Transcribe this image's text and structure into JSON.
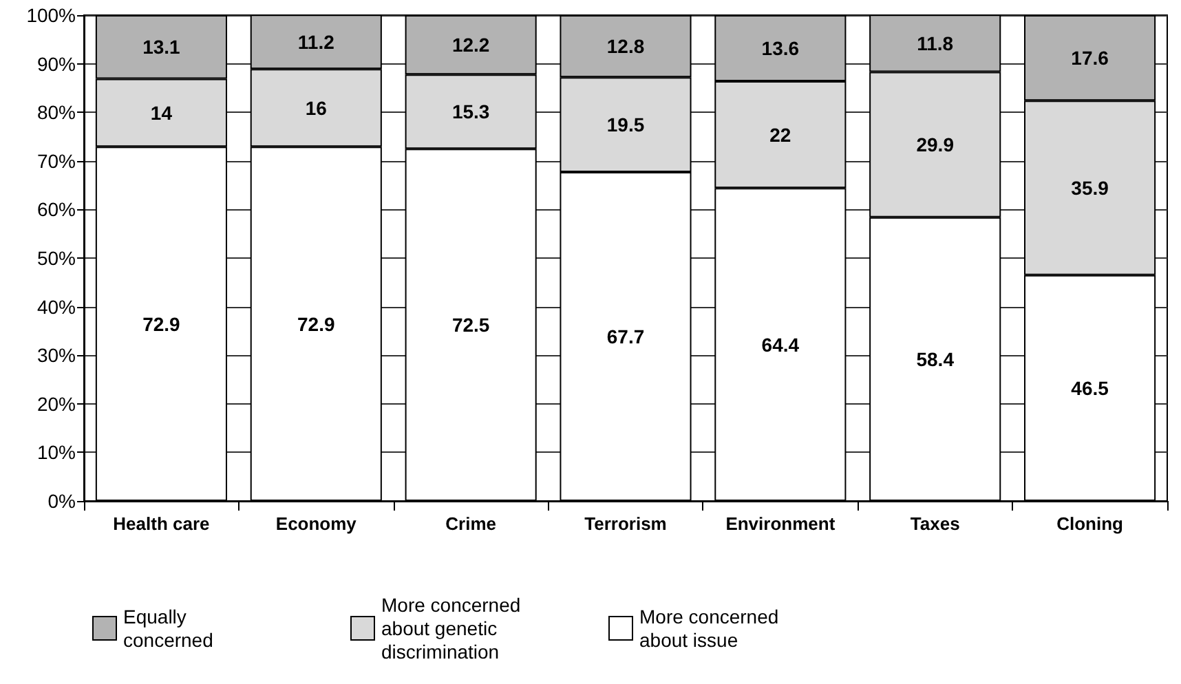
{
  "chart_data": {
    "type": "bar",
    "stacked": true,
    "categories": [
      "Health care",
      "Economy",
      "Crime",
      "Terrorism",
      "Environment",
      "Taxes",
      "Cloning"
    ],
    "series": [
      {
        "name": "More concerned about issue",
        "color": "#ffffff",
        "values": [
          72.9,
          72.9,
          72.5,
          67.7,
          64.4,
          58.4,
          46.5
        ]
      },
      {
        "name": "More concerned about genetic discrimination",
        "color": "#d9d9d9",
        "values": [
          14,
          16,
          15.3,
          19.5,
          22,
          29.9,
          35.9
        ]
      },
      {
        "name": "Equally concerned",
        "color": "#b3b3b3",
        "values": [
          13.1,
          11.2,
          12.2,
          12.8,
          13.6,
          11.8,
          17.6
        ]
      }
    ],
    "ylim": [
      0,
      100
    ],
    "yticks": [
      {
        "value": 0,
        "label": "0%"
      },
      {
        "value": 10,
        "label": "10%"
      },
      {
        "value": 20,
        "label": "20%"
      },
      {
        "value": 30,
        "label": "30%"
      },
      {
        "value": 40,
        "label": "40%"
      },
      {
        "value": 50,
        "label": "50%"
      },
      {
        "value": 60,
        "label": "60%"
      },
      {
        "value": 70,
        "label": "70%"
      },
      {
        "value": 80,
        "label": "80%"
      },
      {
        "value": 90,
        "label": "90%"
      },
      {
        "value": 100,
        "label": "100%"
      }
    ],
    "grid": "y",
    "legend": "bottom left",
    "data_labels": true
  }
}
